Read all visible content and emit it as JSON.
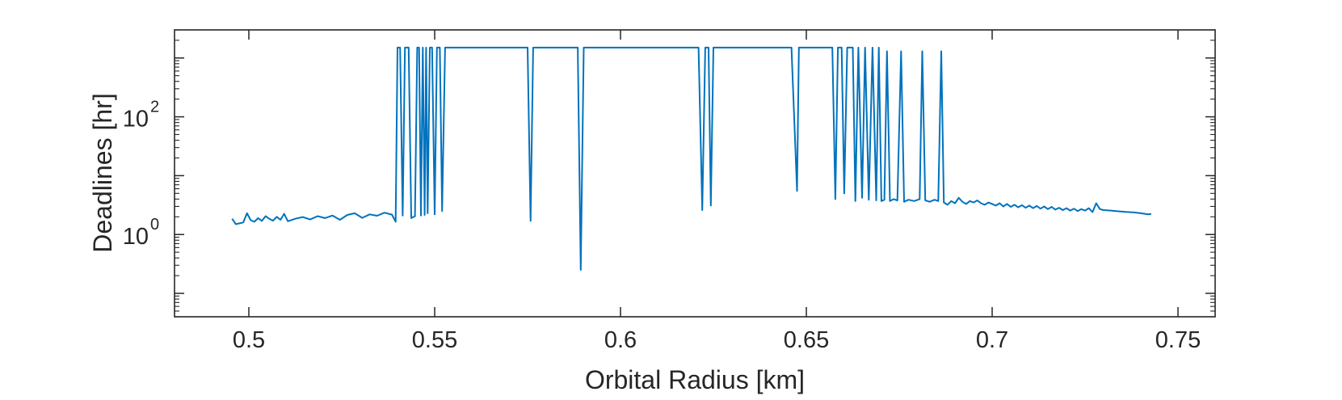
{
  "chart_data": {
    "type": "line",
    "xlabel": "Orbital Radius [km]",
    "ylabel": "Deadlines [hr]",
    "xlim": [
      0.48,
      0.76
    ],
    "ylim": [
      0.04,
      3000
    ],
    "yscale": "log",
    "grid": false,
    "x_ticks": [
      {
        "value": 0.5,
        "label": "0.5"
      },
      {
        "value": 0.55,
        "label": "0.55"
      },
      {
        "value": 0.6,
        "label": "0.6"
      },
      {
        "value": 0.65,
        "label": "0.65"
      },
      {
        "value": 0.7,
        "label": "0.7"
      },
      {
        "value": 0.75,
        "label": "0.75"
      }
    ],
    "y_ticks": [
      {
        "value": 1,
        "base": "10",
        "exponent": "0"
      },
      {
        "value": 100,
        "base": "10",
        "exponent": "2"
      }
    ],
    "line_color": "#0072BD",
    "series": [
      {
        "points": [
          [
            0.4955,
            1.85
          ],
          [
            0.4965,
            1.5
          ],
          [
            0.4985,
            1.6
          ],
          [
            0.4995,
            2.3
          ],
          [
            0.5005,
            1.75
          ],
          [
            0.5015,
            1.65
          ],
          [
            0.5025,
            1.9
          ],
          [
            0.5035,
            1.7
          ],
          [
            0.5045,
            2.05
          ],
          [
            0.5055,
            1.85
          ],
          [
            0.5065,
            1.72
          ],
          [
            0.5075,
            2.0
          ],
          [
            0.5085,
            1.78
          ],
          [
            0.5095,
            2.25
          ],
          [
            0.5105,
            1.68
          ],
          [
            0.5125,
            1.85
          ],
          [
            0.5145,
            1.98
          ],
          [
            0.5165,
            1.8
          ],
          [
            0.5185,
            2.05
          ],
          [
            0.5205,
            1.9
          ],
          [
            0.5225,
            2.1
          ],
          [
            0.5245,
            1.78
          ],
          [
            0.5265,
            2.15
          ],
          [
            0.5285,
            2.3
          ],
          [
            0.5305,
            1.92
          ],
          [
            0.5325,
            2.2
          ],
          [
            0.5345,
            2.08
          ],
          [
            0.5365,
            2.35
          ],
          [
            0.5385,
            2.18
          ],
          [
            0.5395,
            1.65
          ],
          [
            0.54,
            1500
          ],
          [
            0.5407,
            1500
          ],
          [
            0.5414,
            2.1
          ],
          [
            0.542,
            1500
          ],
          [
            0.543,
            1500
          ],
          [
            0.5437,
            1.9
          ],
          [
            0.5447,
            2.05
          ],
          [
            0.5453,
            1500
          ],
          [
            0.5458,
            1500
          ],
          [
            0.5463,
            2.1
          ],
          [
            0.5468,
            1500
          ],
          [
            0.5473,
            2.15
          ],
          [
            0.5477,
            1500
          ],
          [
            0.5481,
            2.3
          ],
          [
            0.5487,
            1500
          ],
          [
            0.5493,
            1500
          ],
          [
            0.55,
            2.2
          ],
          [
            0.5506,
            1500
          ],
          [
            0.5514,
            1500
          ],
          [
            0.552,
            2.5
          ],
          [
            0.5528,
            1500
          ],
          [
            0.56,
            1500
          ],
          [
            0.57,
            1500
          ],
          [
            0.575,
            1500
          ],
          [
            0.5758,
            1.7
          ],
          [
            0.5765,
            1500
          ],
          [
            0.58,
            1500
          ],
          [
            0.5885,
            1500
          ],
          [
            0.5893,
            0.25
          ],
          [
            0.5901,
            1500
          ],
          [
            0.6,
            1500
          ],
          [
            0.61,
            1500
          ],
          [
            0.621,
            1500
          ],
          [
            0.622,
            2.6
          ],
          [
            0.6228,
            1500
          ],
          [
            0.6237,
            1500
          ],
          [
            0.6243,
            3.1
          ],
          [
            0.625,
            1500
          ],
          [
            0.635,
            1500
          ],
          [
            0.646,
            1500
          ],
          [
            0.6475,
            5.5
          ],
          [
            0.648,
            1500
          ],
          [
            0.655,
            1500
          ],
          [
            0.657,
            1500
          ],
          [
            0.6578,
            4.0
          ],
          [
            0.6585,
            1500
          ],
          [
            0.6595,
            1500
          ],
          [
            0.6602,
            5.0
          ],
          [
            0.661,
            1500
          ],
          [
            0.6625,
            1500
          ],
          [
            0.6632,
            3.7
          ],
          [
            0.664,
            1500
          ],
          [
            0.665,
            4.2
          ],
          [
            0.6658,
            1500
          ],
          [
            0.6668,
            3.9
          ],
          [
            0.6678,
            1500
          ],
          [
            0.6688,
            3.8
          ],
          [
            0.6695,
            1500
          ],
          [
            0.6702,
            3.7
          ],
          [
            0.671,
            3.9
          ],
          [
            0.6717,
            1300
          ],
          [
            0.6725,
            3.7
          ],
          [
            0.6735,
            4.0
          ],
          [
            0.6745,
            3.8
          ],
          [
            0.6755,
            1300
          ],
          [
            0.6763,
            3.6
          ],
          [
            0.6775,
            3.9
          ],
          [
            0.679,
            3.7
          ],
          [
            0.6805,
            4.0
          ],
          [
            0.6812,
            1300
          ],
          [
            0.682,
            3.8
          ],
          [
            0.6832,
            3.6
          ],
          [
            0.6845,
            3.9
          ],
          [
            0.6855,
            3.7
          ],
          [
            0.6863,
            1300
          ],
          [
            0.687,
            3.5
          ],
          [
            0.688,
            3.2
          ],
          [
            0.689,
            3.7
          ],
          [
            0.69,
            3.4
          ],
          [
            0.691,
            4.2
          ],
          [
            0.692,
            3.6
          ],
          [
            0.693,
            3.3
          ],
          [
            0.694,
            3.7
          ],
          [
            0.695,
            3.5
          ],
          [
            0.696,
            3.8
          ],
          [
            0.697,
            3.4
          ],
          [
            0.698,
            3.2
          ],
          [
            0.699,
            3.5
          ],
          [
            0.7,
            3.3
          ],
          [
            0.701,
            3.1
          ],
          [
            0.702,
            3.4
          ],
          [
            0.703,
            3.0
          ],
          [
            0.704,
            3.3
          ],
          [
            0.705,
            2.95
          ],
          [
            0.706,
            3.2
          ],
          [
            0.707,
            2.9
          ],
          [
            0.708,
            3.15
          ],
          [
            0.709,
            2.85
          ],
          [
            0.71,
            3.1
          ],
          [
            0.711,
            2.8
          ],
          [
            0.712,
            3.05
          ],
          [
            0.713,
            2.75
          ],
          [
            0.714,
            3.0
          ],
          [
            0.715,
            2.7
          ],
          [
            0.716,
            2.95
          ],
          [
            0.717,
            2.65
          ],
          [
            0.718,
            2.85
          ],
          [
            0.719,
            2.6
          ],
          [
            0.72,
            2.8
          ],
          [
            0.721,
            2.55
          ],
          [
            0.722,
            2.75
          ],
          [
            0.723,
            2.5
          ],
          [
            0.724,
            2.7
          ],
          [
            0.725,
            2.55
          ],
          [
            0.726,
            2.8
          ],
          [
            0.727,
            2.4
          ],
          [
            0.728,
            3.4
          ],
          [
            0.729,
            2.7
          ],
          [
            0.73,
            2.6
          ],
          [
            0.732,
            2.55
          ],
          [
            0.734,
            2.48
          ],
          [
            0.736,
            2.42
          ],
          [
            0.738,
            2.38
          ],
          [
            0.74,
            2.3
          ],
          [
            0.742,
            2.2
          ],
          [
            0.7428,
            2.25
          ]
        ]
      }
    ]
  }
}
